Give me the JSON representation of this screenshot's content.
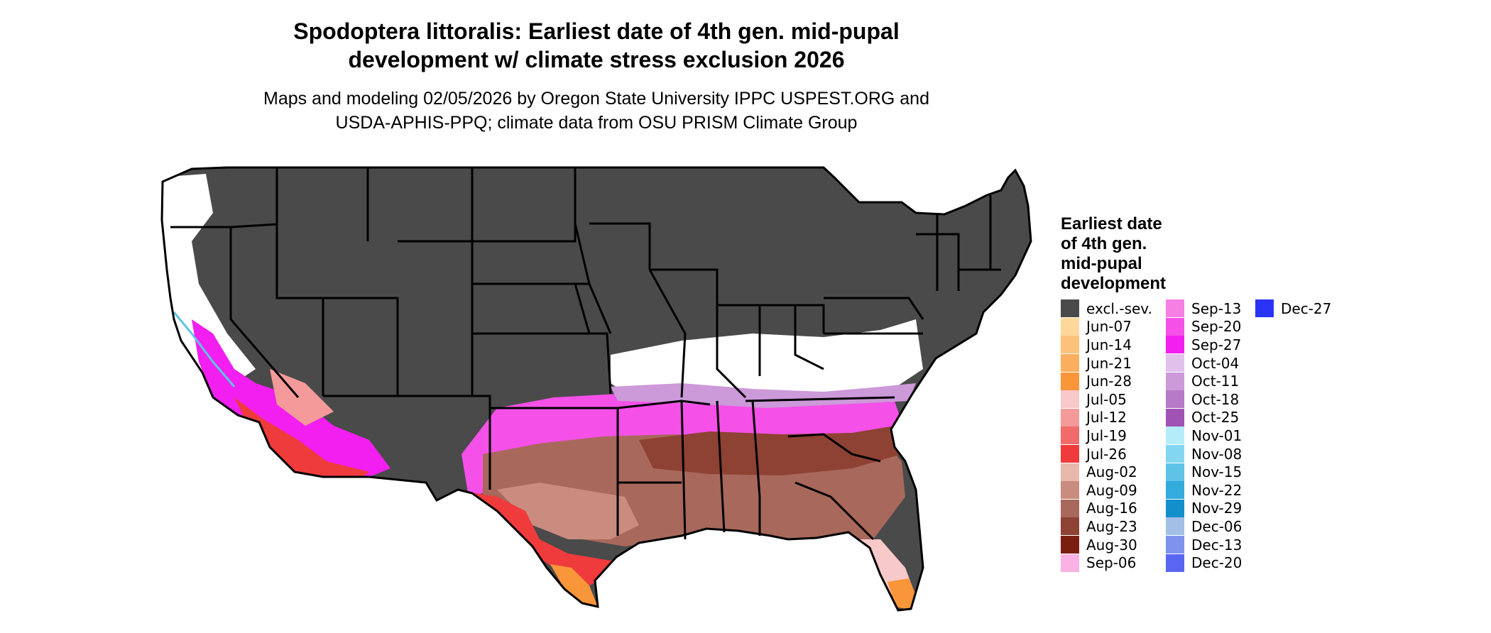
{
  "title": {
    "line1": "Spodoptera littoralis: Earliest date of 4th gen. mid-pupal",
    "line2": "development w/ climate stress exclusion 2026"
  },
  "subtitle": {
    "line1": "Maps and modeling 02/05/2026 by Oregon State University IPPC USPEST.ORG and",
    "line2": "USDA-APHIS-PPQ; climate data from OSU PRISM Climate Group"
  },
  "legend": {
    "title_lines": [
      "Earliest date",
      "of 4th gen.",
      "mid-pupal",
      "development"
    ],
    "columns": [
      [
        {
          "label": "excl.-sev.",
          "color": "#4a4a4a"
        },
        {
          "label": "Jun-07",
          "color": "#fdd89a"
        },
        {
          "label": "Jun-14",
          "color": "#fcc27a"
        },
        {
          "label": "Jun-21",
          "color": "#fbae5e"
        },
        {
          "label": "Jun-28",
          "color": "#f99639"
        },
        {
          "label": "Jul-05",
          "color": "#f7c9c9"
        },
        {
          "label": "Jul-12",
          "color": "#f49a9a"
        },
        {
          "label": "Jul-19",
          "color": "#f16b6b"
        },
        {
          "label": "Jul-26",
          "color": "#ef3b3b"
        },
        {
          "label": "Aug-02",
          "color": "#e8b8ad"
        },
        {
          "label": "Aug-09",
          "color": "#c98c7f"
        },
        {
          "label": "Aug-16",
          "color": "#a8685b"
        },
        {
          "label": "Aug-23",
          "color": "#8d4233"
        },
        {
          "label": "Aug-30",
          "color": "#7a1f0f"
        },
        {
          "label": "Sep-06",
          "color": "#f9b2e3"
        }
      ],
      [
        {
          "label": "Sep-13",
          "color": "#f57fe2"
        },
        {
          "label": "Sep-20",
          "color": "#f550e8"
        },
        {
          "label": "Sep-27",
          "color": "#f21ff0"
        },
        {
          "label": "Oct-04",
          "color": "#e2c0ec"
        },
        {
          "label": "Oct-11",
          "color": "#cc99d9"
        },
        {
          "label": "Oct-18",
          "color": "#b77ac8"
        },
        {
          "label": "Oct-25",
          "color": "#a052b5"
        },
        {
          "label": "Nov-01",
          "color": "#b5ecf9"
        },
        {
          "label": "Nov-08",
          "color": "#84d6f0"
        },
        {
          "label": "Nov-15",
          "color": "#5ec3e7"
        },
        {
          "label": "Nov-22",
          "color": "#33abdc"
        },
        {
          "label": "Nov-29",
          "color": "#1190cc"
        },
        {
          "label": "Dec-06",
          "color": "#a3bfe5"
        },
        {
          "label": "Dec-13",
          "color": "#7f93ee"
        },
        {
          "label": "Dec-20",
          "color": "#5a66f2"
        }
      ],
      [
        {
          "label": "Dec-27",
          "color": "#2b33f7"
        }
      ]
    ]
  },
  "map_colors": {
    "excluded": "#4a4a4a",
    "no_data": "#ffffff",
    "border": "#000000"
  }
}
